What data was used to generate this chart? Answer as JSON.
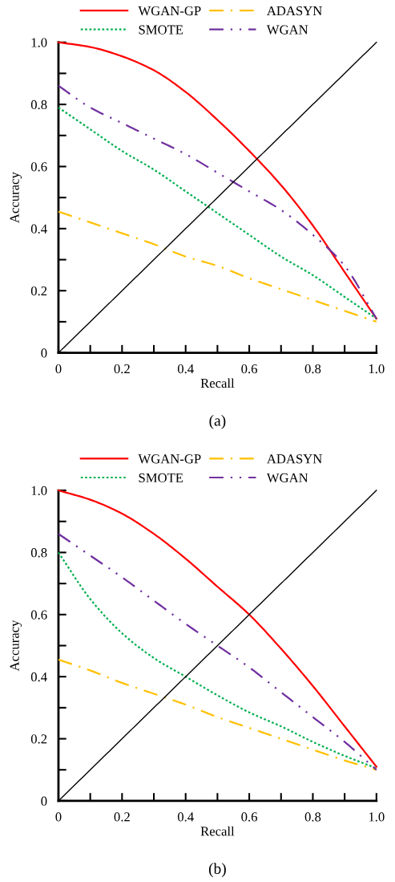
{
  "chart_data": [
    {
      "type": "line",
      "title": "(a)",
      "xlabel": "Recall",
      "ylabel": "Accuracy",
      "legend": "top",
      "grid": false,
      "x": [
        0,
        0.1,
        0.2,
        0.3,
        0.4,
        0.5,
        0.6,
        0.7,
        0.8,
        0.9,
        1.0
      ],
      "xlim": [
        0,
        1
      ],
      "ylim": [
        0,
        1
      ],
      "xticks": [
        0,
        {
          "value": 0.1,
          "label": null
        },
        0.2,
        {
          "value": 0.3,
          "label": null
        },
        0.4,
        {
          "value": 0.5,
          "label": null
        },
        0.6,
        {
          "value": 0.7,
          "label": null
        },
        0.8,
        {
          "value": 0.9,
          "label": null
        },
        {
          "value": 1,
          "label": "1.0"
        }
      ],
      "yticks": [
        0,
        {
          "value": 0.1,
          "label": null
        },
        0.2,
        {
          "value": 0.3,
          "label": null
        },
        0.4,
        {
          "value": 0.5,
          "label": null
        },
        0.6,
        {
          "value": 0.7,
          "label": null
        },
        0.8,
        {
          "value": 0.9,
          "label": null
        },
        {
          "value": 1,
          "label": "1.0"
        }
      ],
      "series": [
        {
          "name": "WGAN-GP",
          "color": "#ff0000",
          "line_style": "solid",
          "values": [
            1.0,
            0.985,
            0.955,
            0.91,
            0.84,
            0.75,
            0.65,
            0.54,
            0.41,
            0.26,
            0.11
          ]
        },
        {
          "name": "SMOTE",
          "color": "#00b050",
          "line_style": "dotted",
          "values": [
            0.79,
            0.72,
            0.65,
            0.59,
            0.52,
            0.45,
            0.38,
            0.31,
            0.25,
            0.18,
            0.11
          ]
        },
        {
          "name": "ADASYN",
          "color": "#ffc000",
          "line_style": "dashdot",
          "values": [
            0.455,
            0.42,
            0.385,
            0.35,
            0.31,
            0.28,
            0.24,
            0.205,
            0.17,
            0.135,
            0.1
          ]
        },
        {
          "name": "WGAN",
          "color": "#7030a0",
          "line_style": "dashdotdot",
          "values": [
            0.86,
            0.79,
            0.74,
            0.69,
            0.64,
            0.58,
            0.52,
            0.46,
            0.38,
            0.28,
            0.11
          ]
        },
        {
          "color": "#000000",
          "line_style": "solid",
          "values": [
            0,
            0.1,
            0.2,
            0.3,
            0.4,
            0.5,
            0.6,
            0.7,
            0.8,
            0.9,
            1.0
          ]
        }
      ]
    },
    {
      "type": "line",
      "title": "(b)",
      "xlabel": "Recall",
      "ylabel": "Accuracy",
      "legend": "top",
      "grid": false,
      "x": [
        0,
        0.1,
        0.2,
        0.3,
        0.4,
        0.5,
        0.6,
        0.7,
        0.8,
        0.9,
        1.0
      ],
      "xlim": [
        0,
        1
      ],
      "ylim": [
        0,
        1
      ],
      "xticks": [
        0,
        {
          "value": 0.1,
          "label": null
        },
        0.2,
        {
          "value": 0.3,
          "label": null
        },
        0.4,
        {
          "value": 0.5,
          "label": null
        },
        0.6,
        {
          "value": 0.7,
          "label": null
        },
        0.8,
        {
          "value": 0.9,
          "label": null
        },
        {
          "value": 1,
          "label": "1.0"
        }
      ],
      "yticks": [
        0,
        {
          "value": 0.1,
          "label": null
        },
        0.2,
        {
          "value": 0.3,
          "label": null
        },
        0.4,
        {
          "value": 0.5,
          "label": null
        },
        0.6,
        {
          "value": 0.7,
          "label": null
        },
        0.8,
        {
          "value": 0.9,
          "label": null
        },
        {
          "value": 1,
          "label": "1.0"
        }
      ],
      "series": [
        {
          "name": "WGAN-GP",
          "color": "#ff0000",
          "line_style": "solid",
          "values": [
            1.0,
            0.97,
            0.925,
            0.86,
            0.78,
            0.69,
            0.6,
            0.49,
            0.37,
            0.24,
            0.11
          ]
        },
        {
          "name": "SMOTE",
          "color": "#00b050",
          "line_style": "dotted",
          "values": [
            0.8,
            0.65,
            0.54,
            0.46,
            0.4,
            0.34,
            0.285,
            0.24,
            0.19,
            0.145,
            0.105
          ]
        },
        {
          "name": "ADASYN",
          "color": "#ffc000",
          "line_style": "dashdot",
          "values": [
            0.455,
            0.42,
            0.38,
            0.345,
            0.31,
            0.27,
            0.235,
            0.2,
            0.165,
            0.13,
            0.1
          ]
        },
        {
          "name": "WGAN",
          "color": "#7030a0",
          "line_style": "dashdotdot",
          "values": [
            0.86,
            0.79,
            0.72,
            0.645,
            0.57,
            0.5,
            0.43,
            0.35,
            0.27,
            0.19,
            0.1
          ]
        },
        {
          "color": "#000000",
          "line_style": "solid",
          "values": [
            0,
            0.1,
            0.2,
            0.3,
            0.4,
            0.5,
            0.6,
            0.7,
            0.8,
            0.9,
            1.0
          ]
        }
      ]
    }
  ]
}
